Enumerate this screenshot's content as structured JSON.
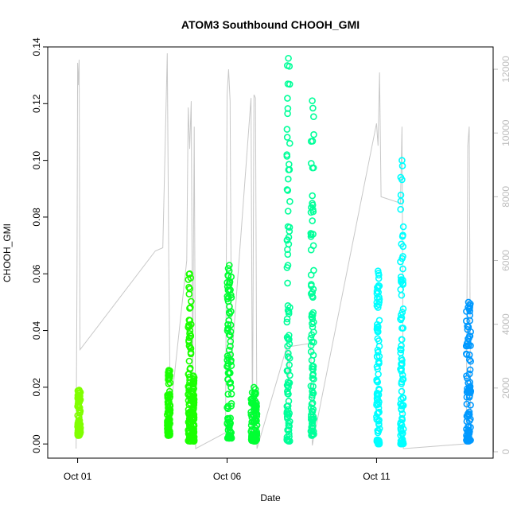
{
  "chart_data": {
    "type": "scatter",
    "title": "ATOM3 Southbound CHOOH_GMI",
    "xlabel": "Date",
    "ylabel": "CHOOH_GMI",
    "x_ticks": [
      "Oct 01",
      "Oct 06",
      "Oct 11"
    ],
    "x_tick_days": [
      1,
      6,
      11
    ],
    "xlim_days": [
      0.0,
      14.9
    ],
    "ylim": [
      -0.005,
      0.14
    ],
    "y_ticks": [
      0.0,
      0.02,
      0.04,
      0.06,
      0.08,
      0.1,
      0.12,
      0.14
    ],
    "y2_ticks": [
      0,
      2000,
      4000,
      6000,
      8000,
      10000,
      12000
    ],
    "y2lim": [
      -200,
      12700
    ],
    "y2_color": "#bdbdbd",
    "colors": {
      "altitude_trace": "#c8c8c8",
      "series_colors": [
        "#80ff00",
        "#1aff00",
        "#00ff33",
        "#00ff99",
        "#00ffff",
        "#0099ff"
      ]
    },
    "grid": false,
    "legend": "none",
    "series": [
      {
        "day_start": 1.0,
        "day_end": 1.1,
        "ymin": 0.003,
        "ymax": 0.019,
        "color": "#80ff00"
      },
      {
        "day_start": 4.0,
        "day_end": 4.1,
        "ymin": 0.003,
        "ymax": 0.026,
        "color": "#1aff00"
      },
      {
        "day_start": 4.7,
        "day_end": 4.8,
        "ymin": 0.001,
        "ymax": 0.06,
        "color": "#1aff00"
      },
      {
        "day_start": 4.85,
        "day_end": 4.9,
        "ymin": 0.001,
        "ymax": 0.024,
        "color": "#1aff00"
      },
      {
        "day_start": 6.0,
        "day_end": 6.15,
        "ymin": 0.002,
        "ymax": 0.063,
        "color": "#00ff33"
      },
      {
        "day_start": 6.8,
        "day_end": 7.0,
        "ymin": 0.001,
        "ymax": 0.02,
        "color": "#00ff33"
      },
      {
        "day_start": 8.0,
        "day_end": 8.1,
        "ymin": 0.001,
        "ymax": 0.136,
        "color": "#00ff99"
      },
      {
        "day_start": 8.8,
        "day_end": 8.9,
        "ymin": 0.003,
        "ymax": 0.121,
        "color": "#00ff99"
      },
      {
        "day_start": 11.0,
        "day_end": 11.1,
        "ymin": 0.0,
        "ymax": 0.061,
        "color": "#00ffff"
      },
      {
        "day_start": 11.8,
        "day_end": 11.9,
        "ymin": 0.0,
        "ymax": 0.1,
        "color": "#00ffff"
      },
      {
        "day_start": 14.0,
        "day_end": 14.15,
        "ymin": 0.001,
        "ymax": 0.05,
        "color": "#0099ff"
      }
    ],
    "altitude_trace": [
      [
        0.95,
        100
      ],
      [
        0.98,
        5500
      ],
      [
        1.0,
        12200
      ],
      [
        1.02,
        11500
      ],
      [
        1.05,
        12300
      ],
      [
        1.08,
        3200
      ],
      [
        3.6,
        6300
      ],
      [
        3.85,
        6400
      ],
      [
        4.0,
        12500
      ],
      [
        4.05,
        5800
      ],
      [
        4.1,
        1200
      ],
      [
        4.65,
        6000
      ],
      [
        4.7,
        10800
      ],
      [
        4.75,
        9500
      ],
      [
        4.8,
        11000
      ],
      [
        4.85,
        2200
      ],
      [
        4.9,
        10200
      ],
      [
        4.95,
        100
      ],
      [
        5.95,
        600
      ],
      [
        6.0,
        11200
      ],
      [
        6.05,
        12000
      ],
      [
        6.1,
        11000
      ],
      [
        6.15,
        2800
      ],
      [
        6.8,
        11100
      ],
      [
        6.85,
        600
      ],
      [
        6.9,
        11200
      ],
      [
        6.95,
        11100
      ],
      [
        7.0,
        100
      ],
      [
        8.0,
        3300
      ],
      [
        8.05,
        2100
      ],
      [
        8.1,
        3300
      ],
      [
        8.8,
        3400
      ],
      [
        8.85,
        200
      ],
      [
        11.0,
        10300
      ],
      [
        11.05,
        9600
      ],
      [
        11.1,
        11900
      ],
      [
        11.15,
        8000
      ],
      [
        11.8,
        7800
      ],
      [
        11.85,
        10200
      ],
      [
        11.9,
        100
      ],
      [
        14.0,
        250
      ],
      [
        14.05,
        9600
      ],
      [
        14.1,
        10200
      ],
      [
        14.15,
        350
      ]
    ]
  }
}
